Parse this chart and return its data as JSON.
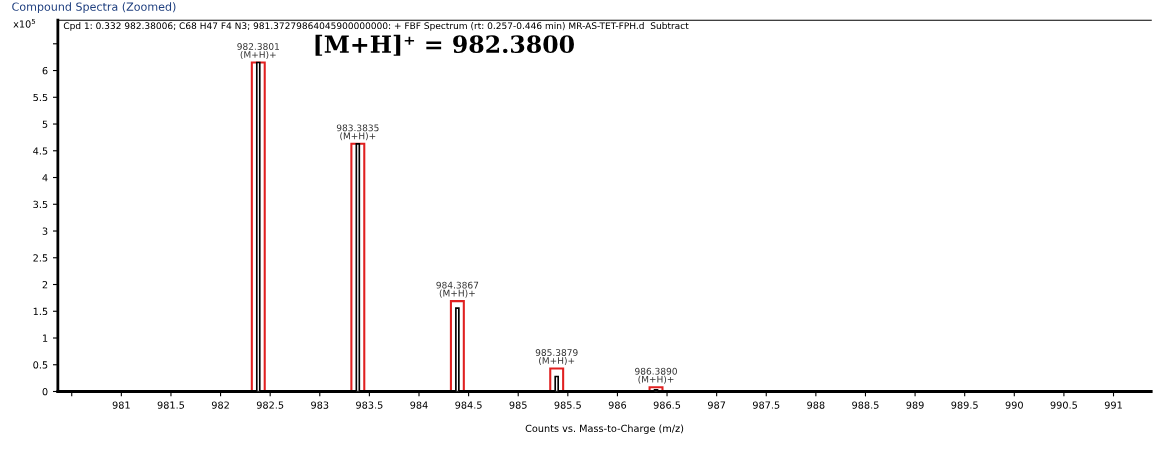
{
  "chart_data": {
    "type": "bar",
    "title": "Compound Spectra (Zoomed)",
    "subtitle": "Cpd 1: 0.332 982.38006; C68 H47 F4 N3; 981.37279864045900000000: + FBF Spectrum (rt: 0.257-0.446 min) MR-AS-TET-FPH.d  Subtract",
    "xlabel": "Counts vs. Mass-to-Charge (m/z)",
    "ylabel": "x10$^{5}$",
    "x": [
      982.3801,
      983.3835,
      984.3867,
      985.3879,
      986.389
    ],
    "series": [
      {
        "color": "#000000",
        "values": [
          6.15,
          4.63,
          1.56,
          0.28,
          0.03
        ]
      },
      {
        "color": "#e02020",
        "values": [
          6.15,
          4.63,
          1.69,
          0.43,
          0.08
        ]
      }
    ],
    "annotations": [
      {
        "text": "982.3801\n(M+H)+",
        "x": 982.3801,
        "y": 6.15
      },
      {
        "text": "983.3835\n(M+H)+",
        "x": 983.3835,
        "y": 4.63
      },
      {
        "text": "984.3867\n(M+H)+",
        "x": 984.3867,
        "y": 1.69
      },
      {
        "text": "985.3879\n(M+H)+",
        "x": 985.3879,
        "y": 0.43
      },
      {
        "text": "986.3890\n(M+H)+",
        "x": 986.389,
        "y": 0.08
      },
      "[M+H]⁺ = 982.3800"
    ],
    "xlim": [
      980.36,
      991.38
    ],
    "ylim": [
      0,
      6.94
    ],
    "xticks": [
      {
        "value": 980.5,
        "label": null
      },
      981,
      981.5,
      982,
      982.5,
      983,
      983.5,
      984,
      984.5,
      985,
      985.5,
      986,
      986.5,
      987,
      987.5,
      988,
      988.5,
      989,
      989.5,
      990,
      990.5,
      991
    ],
    "yticks": [
      0,
      0.5,
      1,
      1.5,
      2,
      2.5,
      3,
      3.5,
      4,
      4.5,
      5,
      5.5,
      6,
      {
        "value": 6.5,
        "label": null
      }
    ],
    "grid": false,
    "legend": false
  }
}
